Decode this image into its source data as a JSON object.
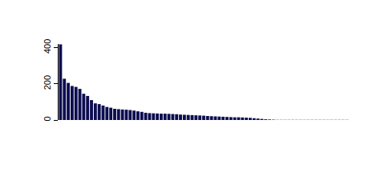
{
  "chart_data": {
    "type": "bar",
    "categories": [
      null,
      null,
      null,
      null,
      null,
      null,
      null,
      null,
      null,
      null,
      null,
      null,
      null,
      null,
      null,
      null,
      null,
      null,
      null,
      null,
      null,
      null,
      null,
      null,
      null,
      null,
      null,
      null,
      null,
      null,
      null,
      null,
      null,
      null,
      null,
      null,
      null,
      null,
      null,
      null,
      null,
      null,
      null,
      null,
      null,
      null,
      null,
      null,
      null,
      null,
      null,
      null,
      null,
      null,
      null,
      null,
      null,
      null,
      null,
      null,
      null,
      null,
      null,
      null,
      null,
      null,
      null,
      null,
      null,
      null,
      null,
      null,
      null,
      null,
      null
    ],
    "values": [
      418,
      228,
      205,
      188,
      183,
      172,
      145,
      133,
      110,
      92,
      88,
      80,
      72,
      68,
      62,
      60,
      58,
      57,
      55,
      52,
      48,
      45,
      40,
      38,
      37,
      36,
      35,
      35,
      34,
      33,
      32,
      30,
      29,
      28,
      27,
      26,
      25,
      24,
      22,
      21,
      20,
      19,
      18,
      17,
      16,
      15,
      15,
      14,
      13,
      12,
      10,
      8,
      6,
      4,
      3,
      2,
      1,
      1,
      1,
      1,
      1,
      1,
      1,
      1,
      1,
      1,
      1,
      1,
      1,
      1,
      1,
      1,
      1,
      1,
      1
    ],
    "color": "#0d0d50",
    "ylim": [
      0,
      420
    ],
    "yticks": [
      0,
      200,
      400
    ],
    "grid": false,
    "tick_labels": "y"
  }
}
